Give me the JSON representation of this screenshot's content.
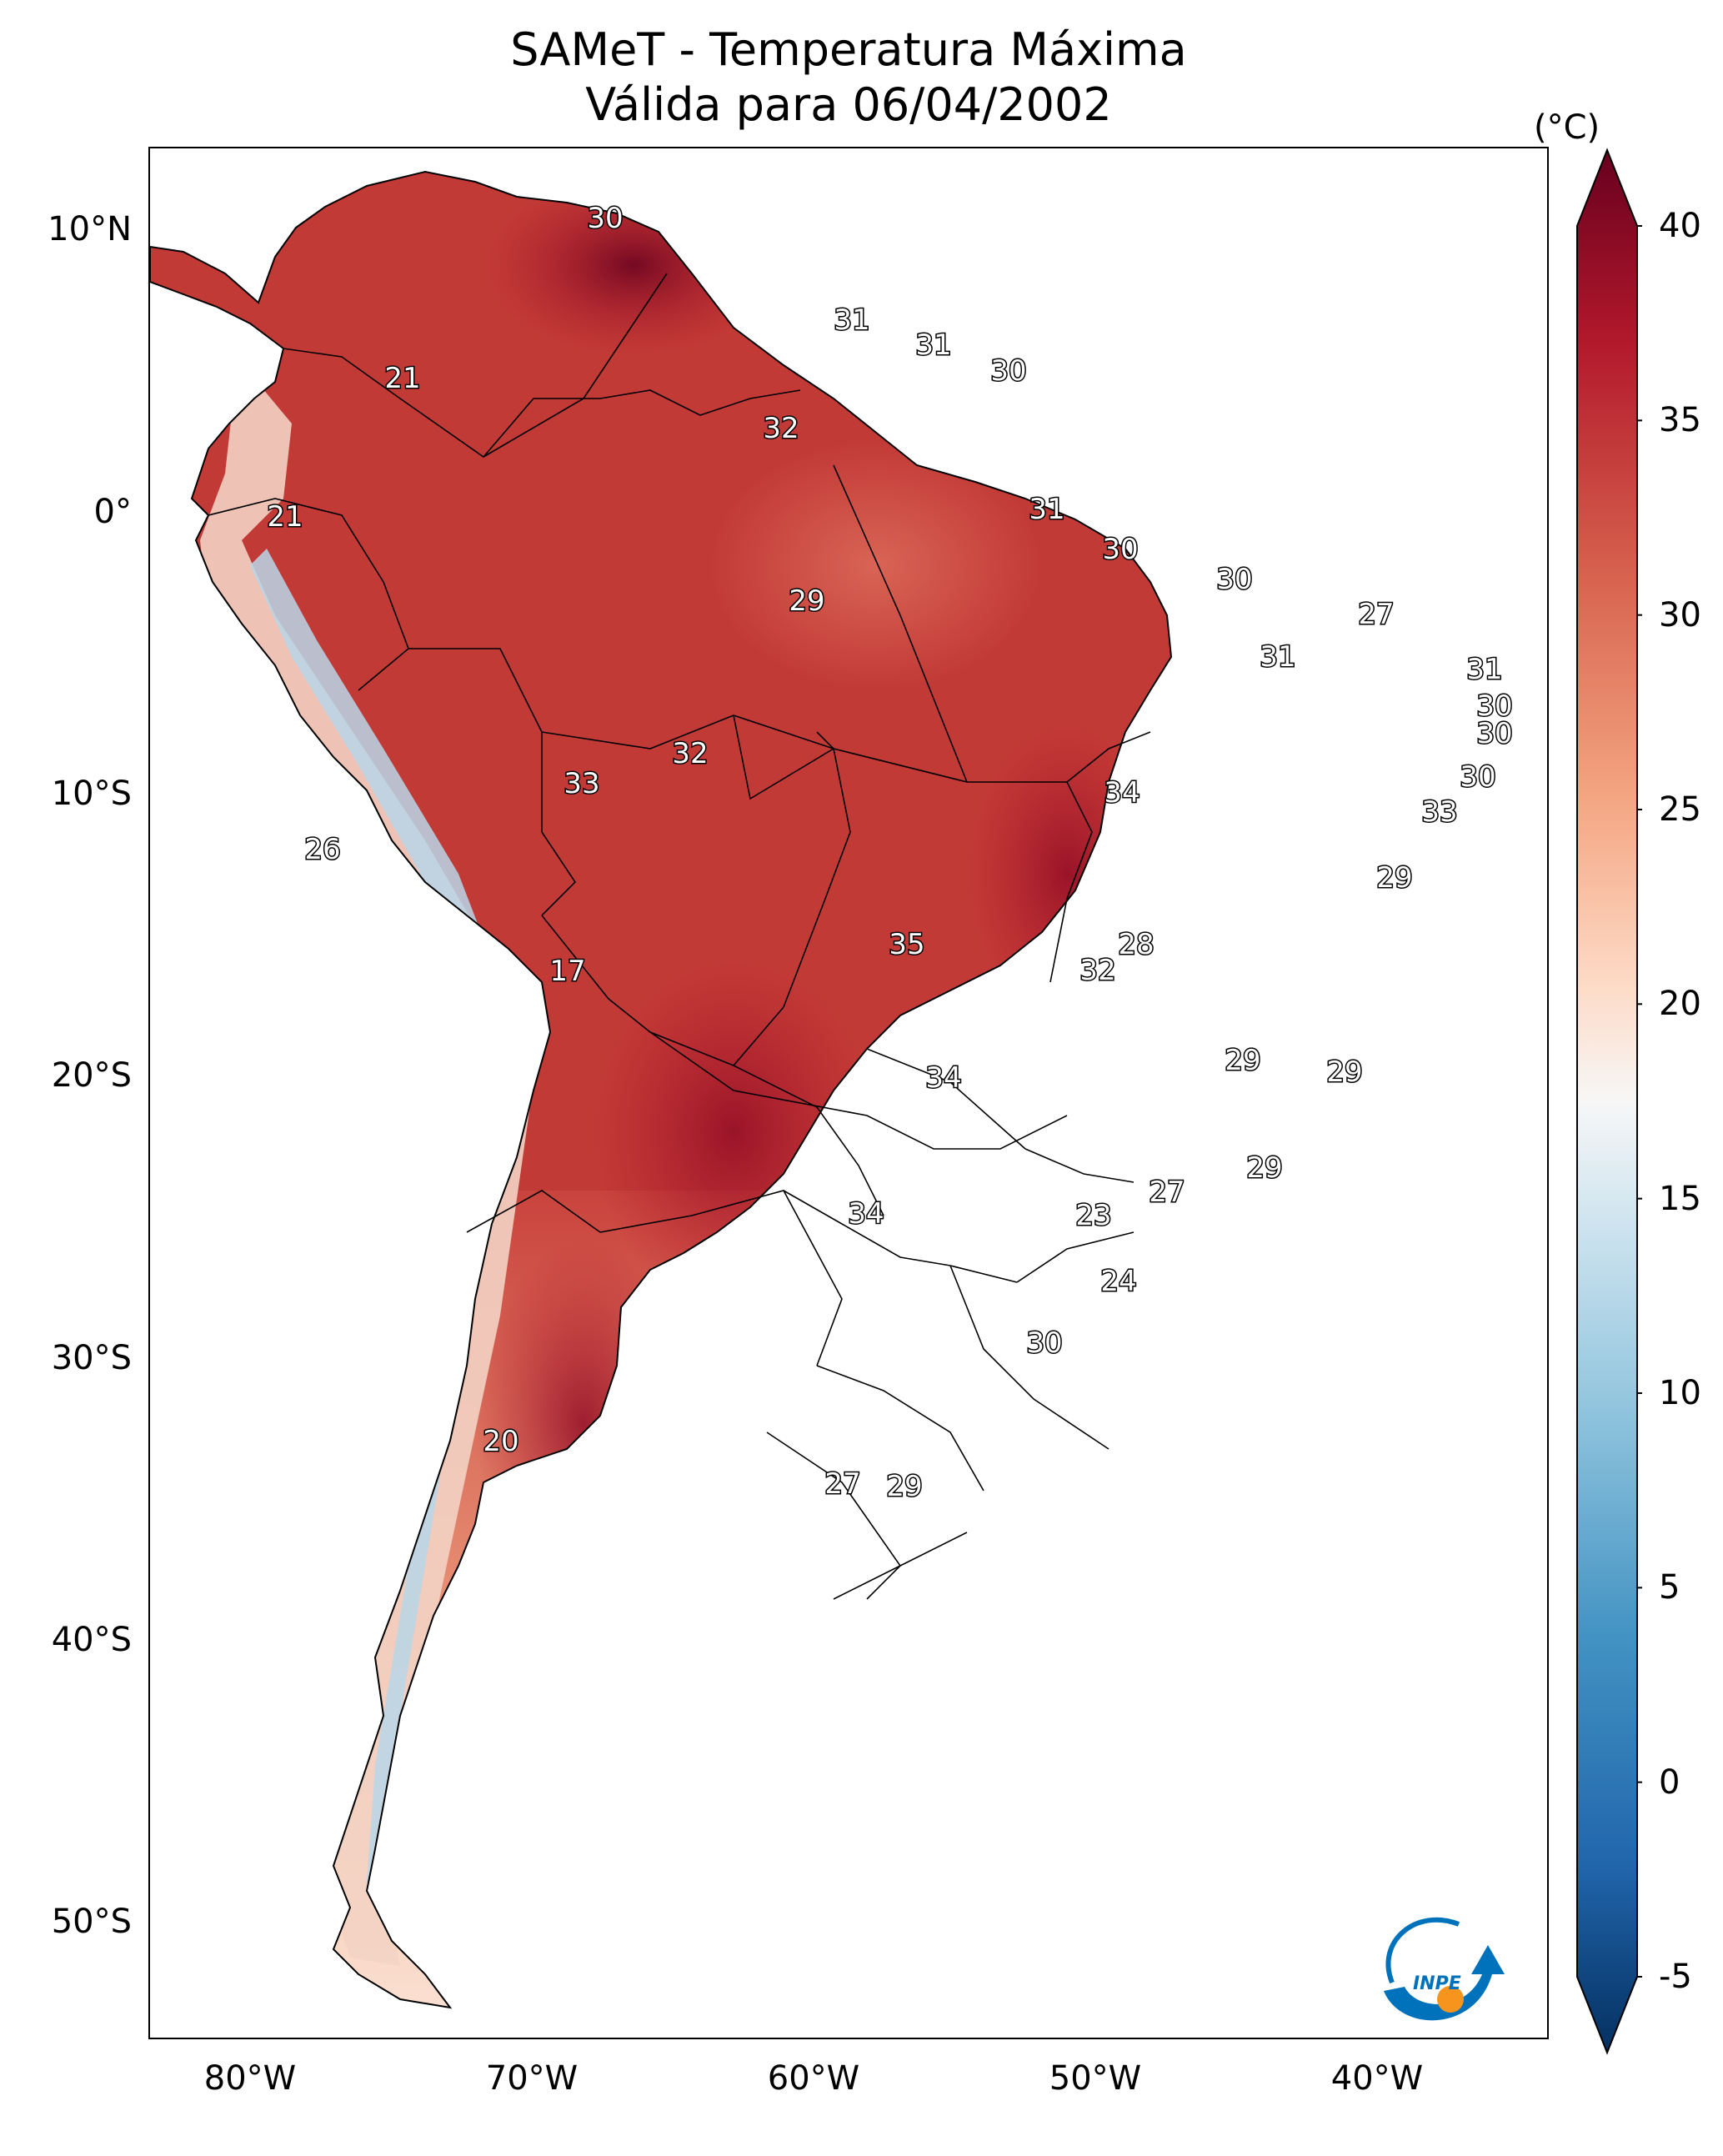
{
  "title": {
    "line1": "SAMeT - Temperatura Máxima",
    "line2": "Válida para 06/04/2002"
  },
  "colorbar": {
    "unit": "(°C)",
    "ticks": [
      "40",
      "35",
      "30",
      "25",
      "20",
      "15",
      "10",
      "5",
      "0",
      "-5"
    ],
    "range": [
      -5,
      40
    ],
    "colors": [
      "#053061",
      "#2166ac",
      "#4393c3",
      "#92c5de",
      "#d1e5f0",
      "#f7f7f7",
      "#fddbc7",
      "#f4a582",
      "#d6604d",
      "#b2182b",
      "#67001f"
    ]
  },
  "axes": {
    "lat_labels": [
      "10°N",
      "0°",
      "10°S",
      "20°S",
      "30°S",
      "40°S",
      "50°S"
    ],
    "lon_labels": [
      "80°W",
      "70°W",
      "60°W",
      "50°W",
      "40°W"
    ]
  },
  "station_values": [
    "30",
    "31",
    "31",
    "30",
    "21",
    "32",
    "21",
    "31",
    "30",
    "29",
    "30",
    "27",
    "31",
    "31",
    "30",
    "30",
    "32",
    "33",
    "34",
    "30",
    "26",
    "33",
    "29",
    "35",
    "28",
    "17",
    "32",
    "29",
    "34",
    "29",
    "29",
    "27",
    "34",
    "23",
    "24",
    "30",
    "20",
    "27",
    "29"
  ],
  "logo": {
    "text": "INPE",
    "colors": [
      "#0072bc",
      "#f7941d"
    ]
  }
}
